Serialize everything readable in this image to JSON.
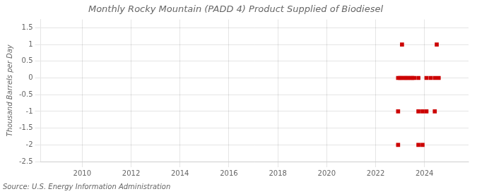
{
  "chart_data": {
    "type": "scatter",
    "title": "Monthly Rocky Mountain (PADD 4) Product Supplied of Biodiesel",
    "ylabel": "Thousand Barrels per Day",
    "source": "Source: U.S. Energy Information Administration",
    "x": [
      2023.08,
      2024.5,
      2022.92,
      2023.0,
      2023.08,
      2023.17,
      2023.25,
      2023.33,
      2023.42,
      2023.5,
      2023.58,
      2023.75,
      2024.08,
      2024.25,
      2024.42,
      2024.58,
      2022.92,
      2023.75,
      2023.92,
      2024.08,
      2024.42,
      2022.92,
      2023.75,
      2023.92
    ],
    "values": [
      1.0,
      1.0,
      0.0,
      0.0,
      0.0,
      0.0,
      0.0,
      0.0,
      0.0,
      0.0,
      0.0,
      0.0,
      0.0,
      0.0,
      0.0,
      0.0,
      -1.0,
      -1.0,
      -1.0,
      -1.0,
      -1.0,
      -2.0,
      -2.0,
      -2.0
    ],
    "color": "#cc0000",
    "marker": "square",
    "xlim": [
      2008.3,
      2025.8
    ],
    "xticks": [
      2010,
      2012,
      2014,
      2016,
      2018,
      2020,
      2022,
      2024
    ],
    "ylim": [
      -2.5,
      1.75
    ],
    "yticks": [
      -2.5,
      -2,
      -1.5,
      -1,
      -0.5,
      0,
      0.5,
      1,
      1.5
    ],
    "grid": true
  }
}
